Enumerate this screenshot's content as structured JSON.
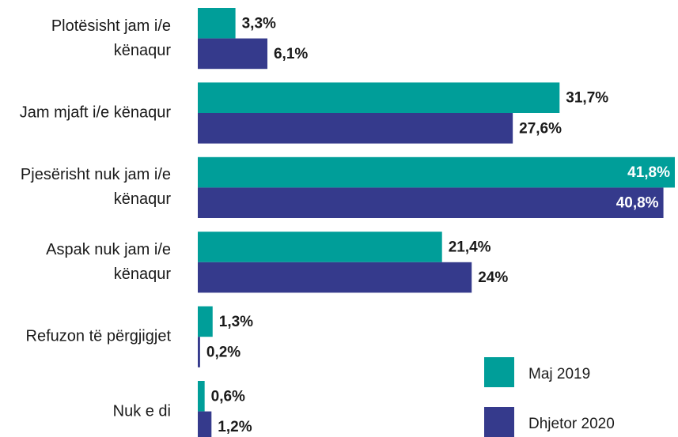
{
  "chart_data": {
    "type": "bar",
    "orientation": "horizontal",
    "categories": [
      "Plotësisht jam i/e kënaqur",
      "Jam mjaft i/e kënaqur",
      "Pjesërisht nuk jam i/e kënaqur",
      "Aspak nuk jam i/e kënaqur",
      "Refuzon të përgjigjet",
      "Nuk e di"
    ],
    "series": [
      {
        "name": "Maj 2019",
        "color": "#009e99",
        "values": [
          3.3,
          31.7,
          41.8,
          21.4,
          1.3,
          0.6
        ],
        "value_labels": [
          "3,3%",
          "31,7%",
          "41,8%",
          "21,4%",
          "1,3%",
          "0,6%"
        ]
      },
      {
        "name": "Dhjetor 2020",
        "color": "#353a8c",
        "values": [
          6.1,
          27.6,
          40.8,
          24,
          0.2,
          1.2
        ],
        "value_labels": [
          "6,1%",
          "27,6%",
          "40,8%",
          "24%",
          "0,2%",
          "1,2%"
        ]
      }
    ],
    "legend": "bottom-right"
  }
}
